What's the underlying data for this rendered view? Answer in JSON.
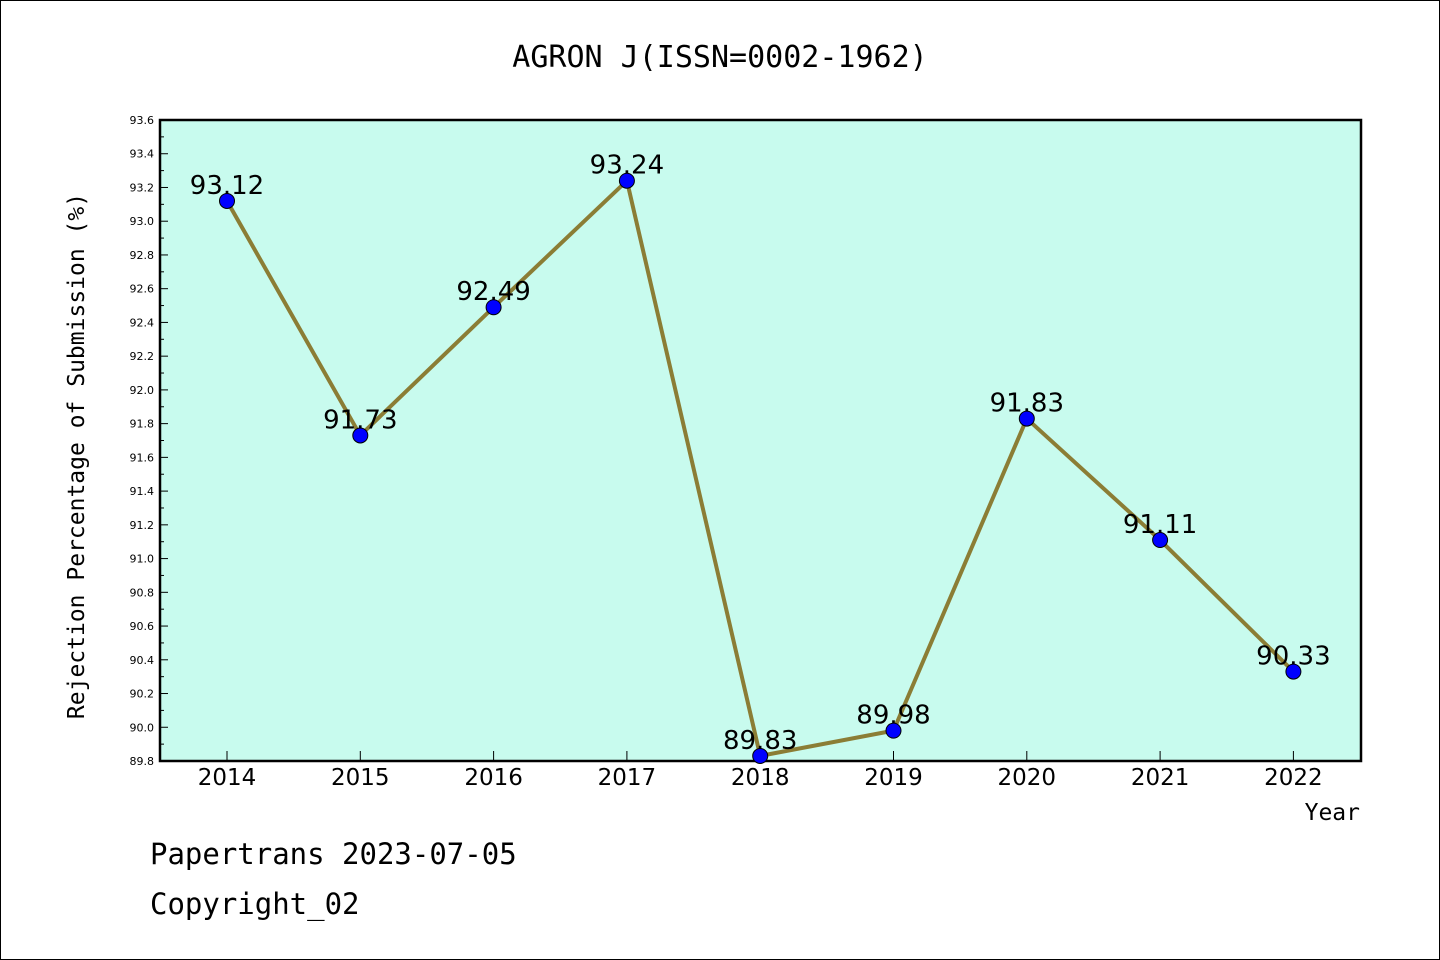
{
  "chart_data": {
    "type": "line",
    "title": "AGRON J(ISSN=0002-1962)",
    "xlabel": "Year",
    "ylabel": "Rejection Percentage of Submission (%)",
    "categories": [
      "2014",
      "2015",
      "2016",
      "2017",
      "2018",
      "2019",
      "2020",
      "2021",
      "2022"
    ],
    "series": [
      {
        "values": [
          93.12,
          91.73,
          92.49,
          93.24,
          89.83,
          89.98,
          91.83,
          91.11,
          90.33
        ],
        "data_labels": [
          "93.12",
          "91.73",
          "92.49",
          "93.24",
          "89.83",
          "89.98",
          "91.83",
          "91.11",
          "90.33"
        ],
        "line_color": "#8b7d35",
        "marker_color": "#0000ff"
      }
    ],
    "ylim": [
      89.8,
      93.6
    ],
    "yticks": [
      "89.8",
      "90.0",
      "90.2",
      "90.4",
      "90.6",
      "90.8",
      "91.0",
      "91.2",
      "91.4",
      "91.6",
      "91.8",
      "92.0",
      "92.2",
      "92.4",
      "92.6",
      "92.8",
      "93.0",
      "93.2",
      "93.4",
      "93.6"
    ],
    "plot_background": "#c8fbee",
    "grid": false,
    "legend": "none"
  },
  "footer": {
    "line1": "Papertrans 2023-07-05",
    "line2": "Copyright_02"
  }
}
